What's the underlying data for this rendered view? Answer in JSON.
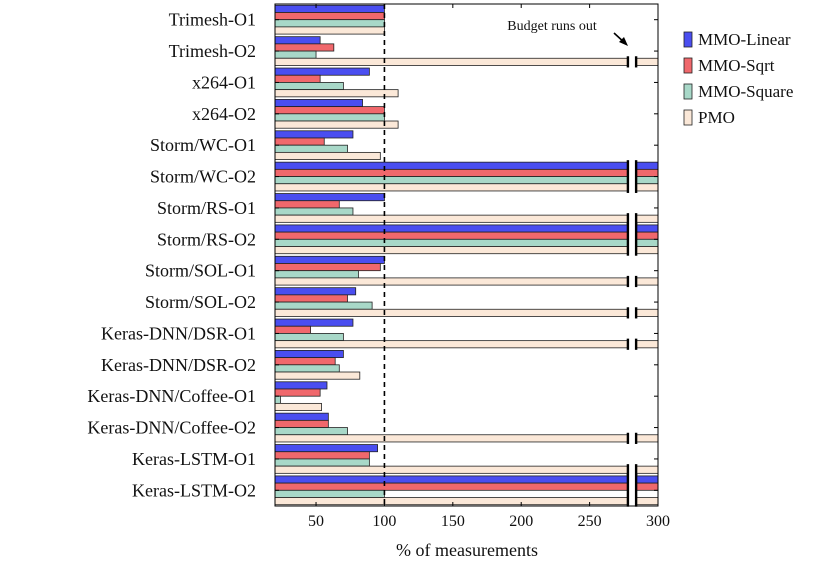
{
  "chart_data": {
    "type": "bar",
    "orientation": "horizontal",
    "xlabel": "% of measurements",
    "xlim": [
      20,
      300
    ],
    "xticks": [
      50,
      100,
      150,
      200,
      250,
      300
    ],
    "axis_break": [
      278,
      284
    ],
    "reference_line": 100,
    "annotation": "Budget runs out",
    "categories": [
      "Trimesh-O1",
      "Trimesh-O2",
      "x264-O1",
      "x264-O2",
      "Storm/WC-O1",
      "Storm/WC-O2",
      "Storm/RS-O1",
      "Storm/RS-O2",
      "Storm/SOL-O1",
      "Storm/SOL-O2",
      "Keras-DNN/DSR-O1",
      "Keras-DNN/DSR-O2",
      "Keras-DNN/Coffee-O1",
      "Keras-DNN/Coffee-O2",
      "Keras-LSTM-O1",
      "Keras-LSTM-O2"
    ],
    "series": [
      {
        "name": "MMO-Linear",
        "color": "#4a4ef0",
        "values": [
          100,
          53,
          89,
          84,
          77,
          300,
          100,
          300,
          100,
          79,
          77,
          70,
          58,
          59,
          95,
          300
        ]
      },
      {
        "name": "MMO-Sqrt",
        "color": "#f0686c",
        "values": [
          100,
          63,
          53,
          100,
          56,
          300,
          67,
          300,
          97,
          73,
          46,
          64,
          53,
          59,
          89,
          300
        ]
      },
      {
        "name": "MMO-Square",
        "color": "#a8d8c8",
        "values": [
          100,
          50,
          70,
          100,
          73,
          300,
          77,
          300,
          81,
          91,
          70,
          67,
          24,
          73,
          89,
          100
        ]
      },
      {
        "name": "PMO",
        "color": "#fbe8d8",
        "values": [
          100,
          300,
          110,
          110,
          97,
          300,
          300,
          300,
          300,
          300,
          300,
          82,
          54,
          300,
          300,
          300
        ]
      }
    ],
    "legend_position": "right"
  }
}
